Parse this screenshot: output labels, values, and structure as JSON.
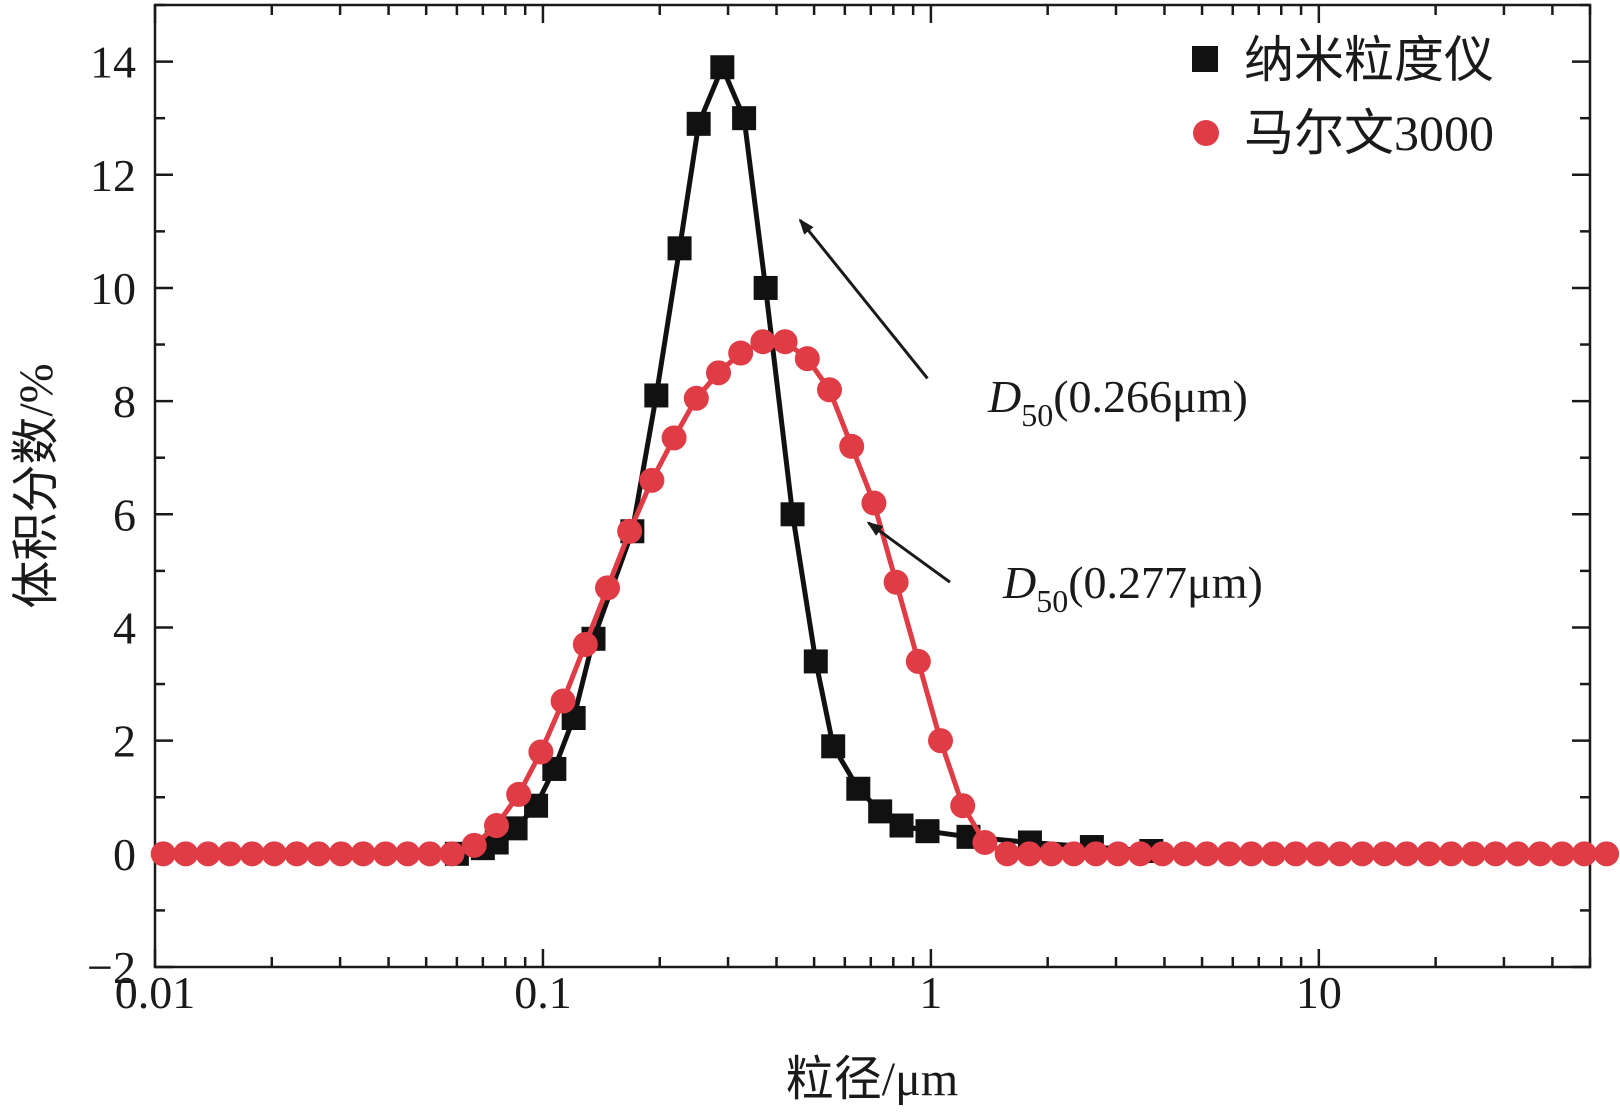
{
  "chart_data": {
    "type": "line",
    "xlabel": "粒径/μm",
    "ylabel": "体积分数/%",
    "xscale": "log",
    "xlim": [
      0.01,
      50
    ],
    "ylim": [
      -2,
      15
    ],
    "xticks": [
      0.01,
      0.1,
      1,
      10
    ],
    "xtick_labels": [
      "0.01",
      "0.1",
      "1",
      "10"
    ],
    "yticks": [
      -2,
      0,
      2,
      4,
      6,
      8,
      10,
      12,
      14
    ],
    "ytick_labels": [
      "−2",
      "0",
      "2",
      "4",
      "6",
      "8",
      "10",
      "12",
      "14"
    ],
    "grid": false,
    "legend_position": "top-right",
    "series": [
      {
        "name": "纳米粒度仪",
        "marker": "square",
        "color": "#111111",
        "points": [
          [
            0.06,
            0.0
          ],
          [
            0.07,
            0.1
          ],
          [
            0.076,
            0.2
          ],
          [
            0.085,
            0.45
          ],
          [
            0.096,
            0.85
          ],
          [
            0.107,
            1.5
          ],
          [
            0.12,
            2.4
          ],
          [
            0.135,
            3.8
          ],
          [
            0.17,
            5.7
          ],
          [
            0.196,
            8.1
          ],
          [
            0.225,
            10.7
          ],
          [
            0.252,
            12.9
          ],
          [
            0.29,
            13.9
          ],
          [
            0.33,
            13.0
          ],
          [
            0.375,
            10.0
          ],
          [
            0.44,
            6.0
          ],
          [
            0.505,
            3.4
          ],
          [
            0.56,
            1.9
          ],
          [
            0.65,
            1.15
          ],
          [
            0.74,
            0.75
          ],
          [
            0.84,
            0.5
          ],
          [
            0.98,
            0.4
          ],
          [
            1.25,
            0.3
          ],
          [
            1.8,
            0.2
          ],
          [
            2.6,
            0.12
          ],
          [
            3.7,
            0.05
          ]
        ]
      },
      {
        "name": "马尔文3000",
        "marker": "circle",
        "color": "#e03c46",
        "points": [
          [
            0.0105,
            0.0
          ],
          [
            0.012,
            0.0
          ],
          [
            0.0137,
            0.0
          ],
          [
            0.0156,
            0.0
          ],
          [
            0.0178,
            0.0
          ],
          [
            0.0203,
            0.0
          ],
          [
            0.0232,
            0.0
          ],
          [
            0.0264,
            0.0
          ],
          [
            0.0302,
            0.0
          ],
          [
            0.0344,
            0.0
          ],
          [
            0.0393,
            0.0
          ],
          [
            0.0448,
            0.0
          ],
          [
            0.0511,
            0.0
          ],
          [
            0.0583,
            0.0
          ],
          [
            0.0665,
            0.15
          ],
          [
            0.0759,
            0.5
          ],
          [
            0.0866,
            1.05
          ],
          [
            0.0988,
            1.8
          ],
          [
            0.1127,
            2.7
          ],
          [
            0.1286,
            3.7
          ],
          [
            0.1467,
            4.7
          ],
          [
            0.1673,
            5.7
          ],
          [
            0.1909,
            6.6
          ],
          [
            0.2178,
            7.35
          ],
          [
            0.2485,
            8.05
          ],
          [
            0.2835,
            8.5
          ],
          [
            0.3234,
            8.85
          ],
          [
            0.3689,
            9.05
          ],
          [
            0.4209,
            9.05
          ],
          [
            0.4802,
            8.75
          ],
          [
            0.5478,
            8.2
          ],
          [
            0.625,
            7.2
          ],
          [
            0.713,
            6.2
          ],
          [
            0.8135,
            4.8
          ],
          [
            0.9281,
            3.4
          ],
          [
            1.0588,
            2.0
          ],
          [
            1.2079,
            0.85
          ],
          [
            1.378,
            0.2
          ],
          [
            1.5721,
            0.0
          ],
          [
            1.7936,
            0.0
          ],
          [
            2.0462,
            0.0
          ],
          [
            2.3344,
            0.0
          ],
          [
            2.6632,
            0.0
          ],
          [
            3.0383,
            0.0
          ],
          [
            3.4663,
            0.0
          ],
          [
            3.9545,
            0.0
          ],
          [
            4.5115,
            0.0
          ],
          [
            5.1469,
            0.0
          ],
          [
            5.8718,
            0.0
          ],
          [
            6.6988,
            0.0
          ],
          [
            7.6423,
            0.0
          ],
          [
            8.7187,
            0.0
          ],
          [
            9.9467,
            0.0
          ],
          [
            11.348,
            0.0
          ],
          [
            12.946,
            0.0
          ],
          [
            14.769,
            0.0
          ],
          [
            16.85,
            0.0
          ],
          [
            19.223,
            0.0
          ],
          [
            21.93,
            0.0
          ],
          [
            25.019,
            0.0
          ],
          [
            28.543,
            0.0
          ],
          [
            32.563,
            0.0
          ],
          [
            37.15,
            0.0
          ],
          [
            42.382,
            0.0
          ],
          [
            48.351,
            0.0
          ],
          [
            55.161,
            0.0
          ]
        ]
      }
    ],
    "annotations": [
      {
        "id": "d50-nano",
        "symbol": "D",
        "subscript": "50",
        "value": "(0.266μm)",
        "points_to": "纳米粒度仪",
        "arrow_from": [
          0.98,
          8.4
        ],
        "arrow_to": [
          0.46,
          11.2
        ]
      },
      {
        "id": "d50-malvern",
        "symbol": "D",
        "subscript": "50",
        "value": "(0.277μm)",
        "points_to": "马尔文3000",
        "arrow_from": [
          1.12,
          4.8
        ],
        "arrow_to": [
          0.69,
          5.85
        ]
      }
    ]
  }
}
